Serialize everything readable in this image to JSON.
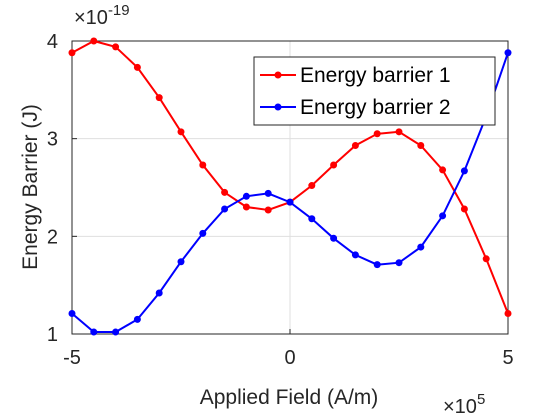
{
  "chart_data": {
    "type": "line",
    "xlabel": "Applied Field (A/m)",
    "ylabel": "Energy Barrier (J)",
    "x_exponent_base": "×10",
    "x_exponent_power": "5",
    "y_exponent_base": "×10",
    "y_exponent_power": "-19",
    "x_scale": 100000,
    "y_scale": 1e-19,
    "xlim": [
      -500000,
      500000
    ],
    "ylim": [
      1e-19,
      4e-19
    ],
    "x_ticks": [
      -500000,
      0,
      500000
    ],
    "x_tick_labels": [
      "-5",
      "0",
      "5"
    ],
    "y_ticks": [
      1e-19,
      2e-19,
      3e-19,
      4e-19
    ],
    "y_tick_labels": [
      "1",
      "2",
      "3",
      "4"
    ],
    "grid": true,
    "legend_position": "top-right",
    "x": [
      -500000,
      -450000,
      -400000,
      -350000,
      -300000,
      -250000,
      -200000,
      -150000,
      -100000,
      -50000,
      0,
      50000,
      100000,
      150000,
      200000,
      250000,
      300000,
      350000,
      400000,
      450000,
      500000
    ],
    "series": [
      {
        "name": "Energy barrier 1",
        "color": "#ff0000",
        "values": [
          3.88e-19,
          4e-19,
          3.94e-19,
          3.73e-19,
          3.42e-19,
          3.07e-19,
          2.73e-19,
          2.45e-19,
          2.3e-19,
          2.27e-19,
          2.35e-19,
          2.52e-19,
          2.73e-19,
          2.93e-19,
          3.05e-19,
          3.07e-19,
          2.93e-19,
          2.68e-19,
          2.28e-19,
          1.77e-19,
          1.21e-19
        ]
      },
      {
        "name": "Energy barrier 2",
        "color": "#0000ff",
        "values": [
          1.21e-19,
          1.02e-19,
          1.02e-19,
          1.15e-19,
          1.42e-19,
          1.74e-19,
          2.03e-19,
          2.28e-19,
          2.41e-19,
          2.44e-19,
          2.35e-19,
          2.18e-19,
          1.98e-19,
          1.81e-19,
          1.71e-19,
          1.73e-19,
          1.89e-19,
          2.21e-19,
          2.67e-19,
          3.23e-19,
          3.88e-19
        ]
      }
    ]
  }
}
